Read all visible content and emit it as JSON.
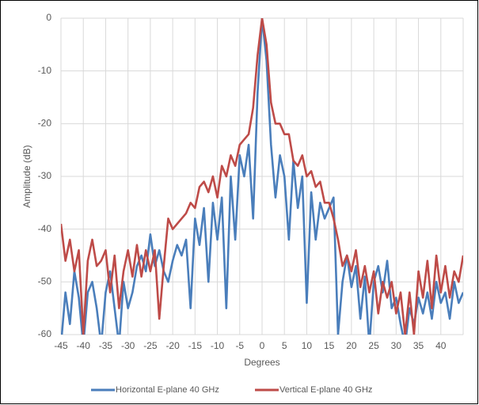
{
  "chart_data": {
    "type": "line",
    "x_label": "Degrees",
    "y_label": "Amplitude (dB)",
    "x": [
      -45,
      -44,
      -43,
      -42,
      -41,
      -40,
      -39,
      -38,
      -37,
      -36,
      -35,
      -34,
      -33,
      -32,
      -31,
      -30,
      -29,
      -28,
      -27,
      -26,
      -25,
      -24,
      -23,
      -22,
      -21,
      -20,
      -19,
      -18,
      -17,
      -16,
      -15,
      -14,
      -13,
      -12,
      -11,
      -10,
      -9,
      -8,
      -7,
      -6,
      -5,
      -4,
      -3,
      -2,
      -1,
      0,
      1,
      2,
      3,
      4,
      5,
      6,
      7,
      8,
      9,
      10,
      11,
      12,
      13,
      14,
      15,
      16,
      17,
      18,
      19,
      20,
      21,
      22,
      23,
      24,
      25,
      26,
      27,
      28,
      29,
      30,
      31,
      32,
      33,
      34,
      35,
      36,
      37,
      38,
      39,
      40,
      41,
      42,
      43,
      44,
      45
    ],
    "series": [
      {
        "name": "Horizontal E-plane 40 GHz",
        "color": "#4a7ebb",
        "values": [
          -62,
          -52,
          -58,
          -48,
          -53,
          -62,
          -52,
          -50,
          -55,
          -62,
          -52,
          -48,
          -55,
          -62,
          -50,
          -55,
          -52,
          -47,
          -45,
          -48,
          -41,
          -47,
          -44,
          -48,
          -50,
          -46,
          -43,
          -45,
          -42,
          -55,
          -38,
          -43,
          -36,
          -50,
          -35,
          -42,
          -34,
          -55,
          -30,
          -42,
          -26,
          -30,
          -24,
          -38,
          -14,
          0,
          -8,
          -24,
          -34,
          -26,
          -30,
          -42,
          -27,
          -36,
          -30,
          -54,
          -33,
          -42,
          -35,
          -38,
          -36,
          -34,
          -60,
          -50,
          -45,
          -51,
          -47,
          -57,
          -49,
          -62,
          -50,
          -47,
          -52,
          -46,
          -55,
          -53,
          -58,
          -62,
          -55,
          -58,
          -53,
          -56,
          -52,
          -57,
          -50,
          -54,
          -52,
          -57,
          -50,
          -54,
          -52
        ]
      },
      {
        "name": "Vertical E-plane 40 GHz",
        "color": "#be4b48",
        "values": [
          -39,
          -46,
          -42,
          -48,
          -44,
          -60,
          -46,
          -42,
          -47,
          -46,
          -44,
          -52,
          -45,
          -55,
          -48,
          -44,
          -49,
          -43,
          -49,
          -44,
          -48,
          -44,
          -57,
          -47,
          -38,
          -40,
          -39,
          -38,
          -37,
          -35,
          -36,
          -32,
          -31,
          -33,
          -30,
          -34,
          -28,
          -30,
          -26,
          -28,
          -24,
          -23,
          -22,
          -17,
          -7,
          0,
          -5,
          -16,
          -20,
          -20,
          -22,
          -22,
          -27,
          -28,
          -26,
          -30,
          -29,
          -32,
          -31,
          -35,
          -35,
          -38,
          -42,
          -47,
          -45,
          -48,
          -44,
          -51,
          -47,
          -52,
          -48,
          -56,
          -50,
          -53,
          -50,
          -56,
          -52,
          -60,
          -52,
          -60,
          -48,
          -53,
          -46,
          -55,
          -45,
          -52,
          -47,
          -53,
          -48,
          -50,
          -45
        ]
      }
    ],
    "xlim": [
      -45,
      45
    ],
    "xticks": [
      -45,
      -40,
      -35,
      -30,
      -25,
      -20,
      -15,
      -10,
      -5,
      0,
      5,
      10,
      15,
      20,
      25,
      30,
      35,
      40
    ],
    "ylim": [
      -60,
      0
    ],
    "yticks": [
      -60,
      -50,
      -40,
      -30,
      -20,
      -10,
      0
    ],
    "grid": true,
    "legend": "bottom"
  }
}
